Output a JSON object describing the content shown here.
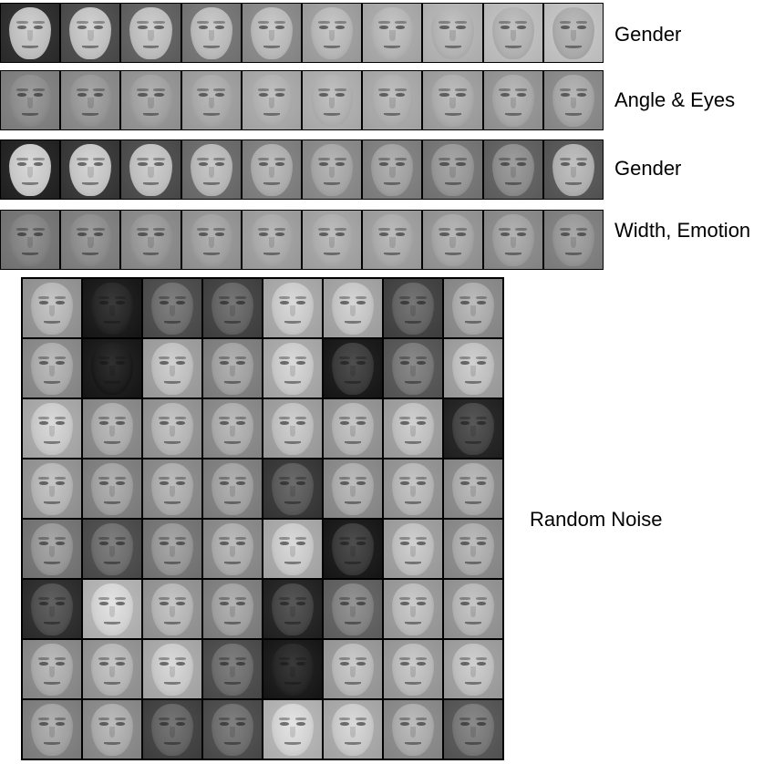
{
  "strips": [
    {
      "label": "Gender",
      "tones": [
        190,
        192,
        188,
        185,
        184,
        182,
        180,
        178,
        176,
        170
      ],
      "bg": [
        40,
        70,
        90,
        110,
        130,
        150,
        160,
        170,
        180,
        185
      ]
    },
    {
      "label": "Angle & Eyes",
      "tones": [
        140,
        150,
        160,
        168,
        175,
        176,
        174,
        172,
        168,
        165
      ],
      "bg": [
        120,
        130,
        140,
        150,
        160,
        165,
        160,
        150,
        140,
        130
      ]
    },
    {
      "label": "Gender",
      "tones": [
        200,
        196,
        190,
        182,
        172,
        165,
        160,
        150,
        140,
        175
      ],
      "bg": [
        30,
        50,
        70,
        100,
        120,
        130,
        120,
        110,
        90,
        80
      ]
    },
    {
      "label": "Width, Emotion",
      "tones": [
        130,
        140,
        150,
        160,
        168,
        172,
        170,
        166,
        160,
        150
      ],
      "bg": [
        110,
        120,
        130,
        140,
        150,
        155,
        150,
        140,
        130,
        120
      ]
    }
  ],
  "grid_label": "Random Noise",
  "grid_tones": [
    [
      180,
      40,
      110,
      100,
      200,
      195,
      100,
      170
    ],
    [
      170,
      30,
      190,
      160,
      200,
      60,
      120,
      190
    ],
    [
      200,
      170,
      180,
      170,
      190,
      180,
      190,
      70
    ],
    [
      180,
      160,
      170,
      160,
      90,
      170,
      180,
      170
    ],
    [
      150,
      110,
      150,
      170,
      200,
      60,
      190,
      170
    ],
    [
      80,
      210,
      180,
      160,
      70,
      130,
      185,
      180
    ],
    [
      170,
      180,
      200,
      110,
      40,
      185,
      185,
      190
    ],
    [
      160,
      170,
      100,
      110,
      210,
      200,
      170,
      120
    ]
  ]
}
